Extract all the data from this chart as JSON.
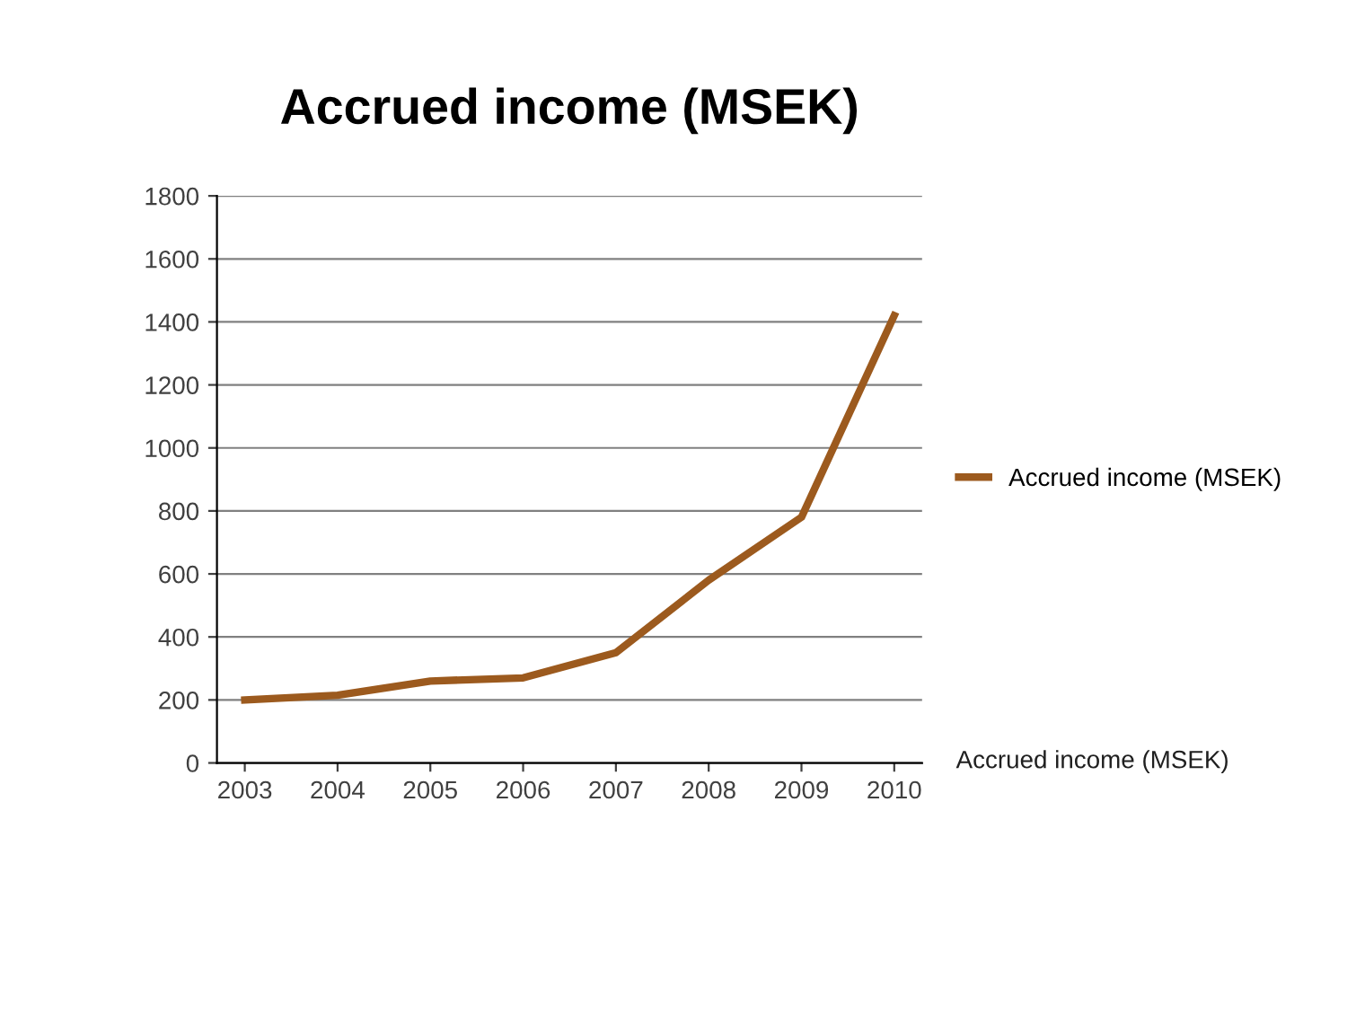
{
  "chart_data": {
    "type": "line",
    "title": "Accrued income (MSEK)",
    "categories": [
      "2003",
      "2004",
      "2005",
      "2006",
      "2007",
      "2008",
      "2009",
      "2010"
    ],
    "series": [
      {
        "name": "Accrued income (MSEK)",
        "color": "#9c5a1e",
        "values": [
          200,
          215,
          260,
          270,
          350,
          580,
          780,
          1420
        ]
      }
    ],
    "ylim": [
      0,
      1800
    ],
    "yticks": [
      0,
      200,
      400,
      600,
      800,
      1000,
      1200,
      1400,
      1600,
      1800
    ],
    "grid": "y",
    "legend": "right",
    "marker": "none",
    "line_style": "solid",
    "annotations": [
      "Accrued income (MSEK)"
    ]
  }
}
